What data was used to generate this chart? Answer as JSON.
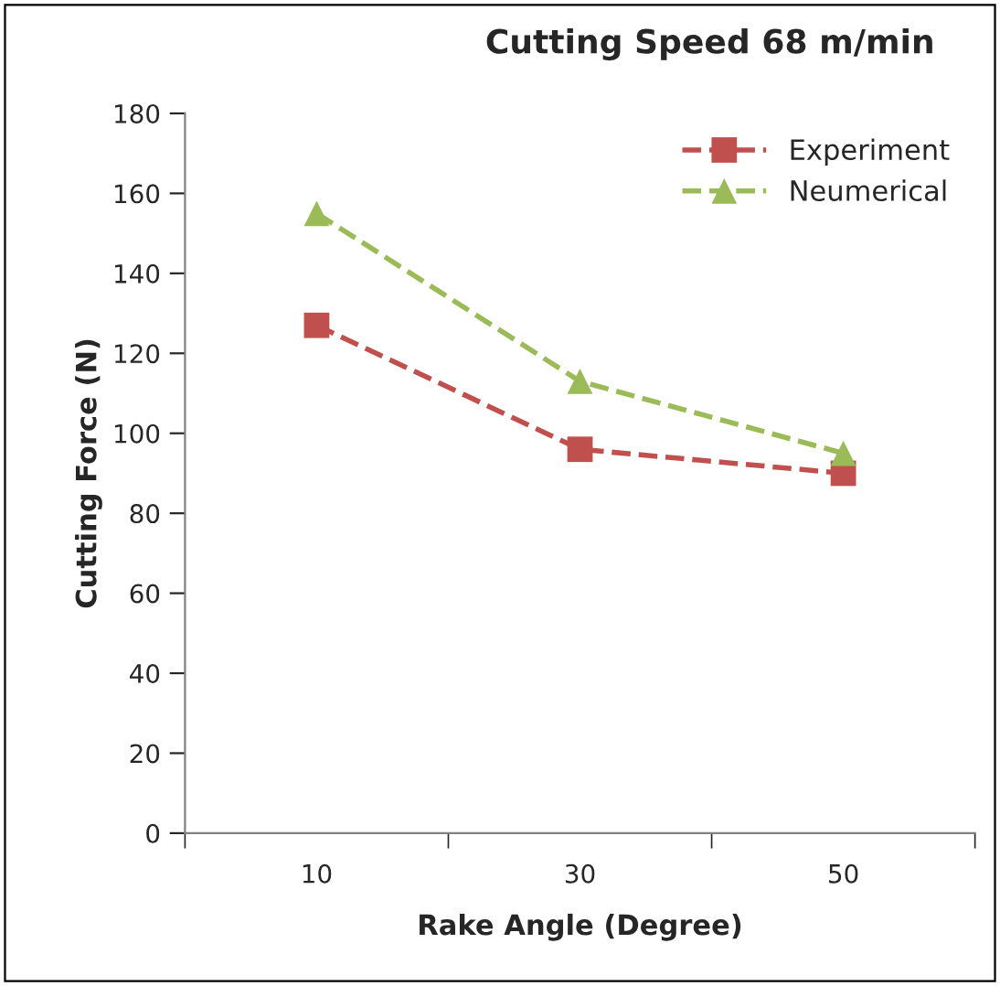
{
  "chart_data": {
    "type": "line",
    "title": "Cutting Speed 68 m/min",
    "xlabel": "Rake Angle (Degree)",
    "ylabel": "Cutting Force (N)",
    "categories": [
      "10",
      "30",
      "50"
    ],
    "series": [
      {
        "name": "Experiment",
        "color": "#c0504d",
        "values": [
          127,
          96,
          90
        ],
        "marker": "square"
      },
      {
        "name": "Neumerical",
        "color": "#9bbb59",
        "values": [
          155,
          113,
          95
        ],
        "marker": "triangle"
      }
    ],
    "ylim": [
      0,
      180
    ],
    "yticks": [
      0,
      20,
      40,
      60,
      80,
      100,
      120,
      140,
      160,
      180
    ],
    "grid": false,
    "legend": "top right",
    "line_style": "dashed"
  }
}
